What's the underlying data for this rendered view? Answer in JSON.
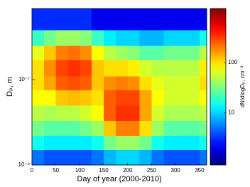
{
  "chart_data": {
    "type": "heatmap",
    "xlabel": "Day of year (2000-2010)",
    "ylabel": "Dₚ, m",
    "colorbar_label": "dN/dlogDₚ, cm⁻³",
    "colormap": "jet",
    "y_log": true,
    "color_log": true,
    "x_edges": [
      0,
      25,
      50,
      75,
      100,
      125,
      150,
      175,
      200,
      225,
      250,
      275,
      300,
      325,
      350,
      365
    ],
    "y_edges": [
      1e-08,
      1.5e-08,
      2.2e-08,
      3.3e-08,
      5e-08,
      7.5e-08,
      1.1e-07,
      1.7e-07,
      2.5e-07,
      3.8e-07,
      6.8e-07
    ],
    "z": [
      [
        5,
        4,
        4,
        4,
        4,
        5,
        8,
        10,
        10,
        8,
        5,
        4,
        4,
        4,
        5
      ],
      [
        15,
        12,
        12,
        12,
        12,
        15,
        30,
        40,
        40,
        30,
        15,
        12,
        12,
        12,
        15
      ],
      [
        30,
        25,
        25,
        25,
        30,
        40,
        120,
        200,
        200,
        100,
        40,
        25,
        25,
        25,
        30
      ],
      [
        50,
        45,
        50,
        50,
        60,
        80,
        250,
        350,
        350,
        150,
        60,
        45,
        45,
        45,
        50
      ],
      [
        80,
        80,
        120,
        130,
        120,
        100,
        250,
        300,
        300,
        150,
        80,
        60,
        60,
        60,
        80
      ],
      [
        100,
        150,
        250,
        280,
        250,
        120,
        180,
        200,
        180,
        100,
        70,
        60,
        60,
        60,
        100
      ],
      [
        100,
        180,
        300,
        350,
        300,
        120,
        100,
        100,
        90,
        60,
        50,
        50,
        50,
        50,
        90
      ],
      [
        70,
        120,
        200,
        220,
        180,
        80,
        50,
        40,
        35,
        25,
        25,
        30,
        30,
        30,
        50
      ],
      [
        20,
        30,
        40,
        40,
        35,
        20,
        12,
        10,
        10,
        8,
        8,
        10,
        10,
        10,
        15
      ],
      [
        3,
        3,
        3,
        3,
        3,
        2,
        2,
        2,
        2,
        2,
        2,
        2,
        2,
        2,
        2
      ]
    ],
    "xlim": [
      0,
      365
    ],
    "xticks": [
      0,
      50,
      100,
      150,
      200,
      250,
      300,
      350
    ],
    "ylim": [
      1e-08,
      6.8e-07
    ],
    "yticks": [
      {
        "value": 1e-08,
        "label": "10⁻⁸"
      },
      {
        "value": 1e-07,
        "label": "10⁻⁷"
      }
    ],
    "clim": [
      0.9,
      1200
    ],
    "cticks": [
      10,
      100
    ]
  }
}
